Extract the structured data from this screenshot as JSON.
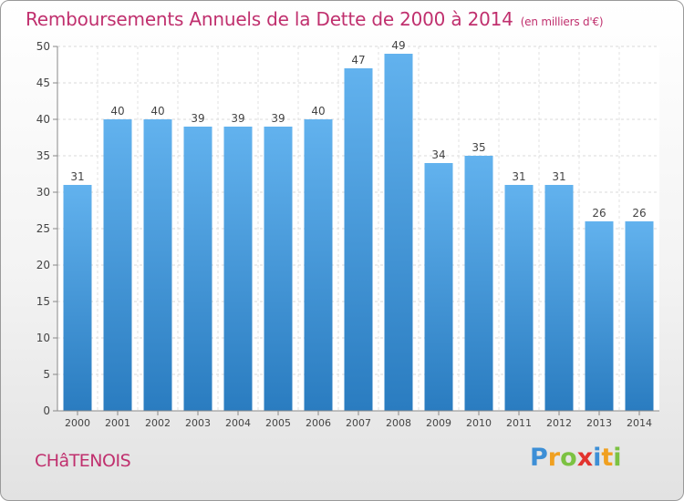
{
  "header": {
    "title": "Remboursements Annuels de la Dette de 2000 à 2014",
    "subtitle": "(en milliers d'€)"
  },
  "footer": {
    "city": "CHâTENOIS",
    "logo_letters": [
      "P",
      "r",
      "o",
      "x",
      "i",
      "t",
      "i"
    ],
    "logo_colors": [
      "#3d8fd6",
      "#f0a020",
      "#7cc242",
      "#e2332e",
      "#3d8fd6",
      "#f0a020",
      "#7cc242"
    ]
  },
  "chart_data": {
    "type": "bar",
    "title": "Remboursements Annuels de la Dette de 2000 à 2014",
    "categories": [
      "2000",
      "2001",
      "2002",
      "2003",
      "2004",
      "2005",
      "2006",
      "2007",
      "2008",
      "2009",
      "2010",
      "2011",
      "2012",
      "2013",
      "2014"
    ],
    "values": [
      31,
      40,
      40,
      39,
      39,
      39,
      40,
      47,
      49,
      34,
      35,
      31,
      31,
      26,
      26
    ],
    "ylim": [
      0,
      50
    ],
    "yticks": [
      0,
      5,
      10,
      15,
      20,
      25,
      30,
      35,
      40,
      45,
      50
    ],
    "grid": true,
    "bar_color_top": "#62b2ee",
    "bar_color_bottom": "#2a7cc0"
  }
}
